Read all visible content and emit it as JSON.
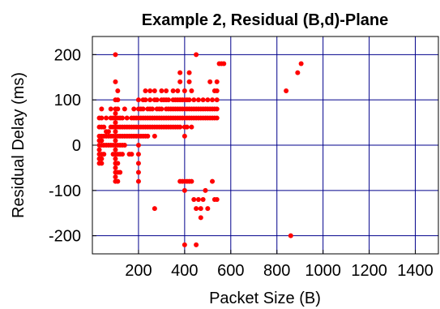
{
  "chart_data": {
    "type": "scatter",
    "title": "Example 2, Residual (B,d)-Plane",
    "xlabel": "Packet Size (B)",
    "ylabel": "Residual Delay (ms)",
    "xlim": [
      0,
      1500
    ],
    "ylim": [
      -240,
      240
    ],
    "xticks": [
      200,
      400,
      600,
      800,
      1000,
      1200,
      1400
    ],
    "xtick_labels": [
      "200",
      "400",
      "600",
      "800",
      "1000",
      "1200",
      "1400"
    ],
    "yticks": [
      -200,
      -100,
      0,
      100,
      200
    ],
    "ytick_labels": [
      "-200",
      "-100",
      "0",
      "100",
      "200"
    ],
    "grid": true,
    "grid_color": "#00008b",
    "point_color": "#ff0000",
    "points": [
      [
        30,
        -40
      ],
      [
        30,
        -30
      ],
      [
        30,
        -20
      ],
      [
        30,
        -10
      ],
      [
        30,
        0
      ],
      [
        30,
        10
      ],
      [
        30,
        20
      ],
      [
        30,
        40
      ],
      [
        30,
        60
      ],
      [
        40,
        -40
      ],
      [
        40,
        -30
      ],
      [
        40,
        -20
      ],
      [
        40,
        0
      ],
      [
        40,
        10
      ],
      [
        40,
        20
      ],
      [
        40,
        40
      ],
      [
        40,
        60
      ],
      [
        40,
        80
      ],
      [
        50,
        -20
      ],
      [
        50,
        0
      ],
      [
        50,
        20
      ],
      [
        50,
        40
      ],
      [
        60,
        0
      ],
      [
        60,
        20
      ],
      [
        60,
        30
      ],
      [
        60,
        60
      ],
      [
        70,
        0
      ],
      [
        70,
        20
      ],
      [
        70,
        30
      ],
      [
        80,
        0
      ],
      [
        80,
        20
      ],
      [
        80,
        40
      ],
      [
        80,
        60
      ],
      [
        80,
        80
      ],
      [
        90,
        -20
      ],
      [
        90,
        0
      ],
      [
        90,
        20
      ],
      [
        90,
        40
      ],
      [
        90,
        60
      ],
      [
        100,
        -80
      ],
      [
        100,
        -70
      ],
      [
        100,
        -60
      ],
      [
        100,
        -50
      ],
      [
        100,
        -40
      ],
      [
        100,
        -30
      ],
      [
        100,
        -20
      ],
      [
        100,
        -10
      ],
      [
        100,
        0
      ],
      [
        100,
        10
      ],
      [
        100,
        20
      ],
      [
        100,
        30
      ],
      [
        100,
        40
      ],
      [
        100,
        50
      ],
      [
        100,
        60
      ],
      [
        100,
        70
      ],
      [
        100,
        80
      ],
      [
        100,
        100
      ],
      [
        100,
        140
      ],
      [
        100,
        200
      ],
      [
        110,
        -80
      ],
      [
        110,
        -60
      ],
      [
        110,
        -40
      ],
      [
        110,
        -20
      ],
      [
        110,
        0
      ],
      [
        110,
        20
      ],
      [
        110,
        40
      ],
      [
        110,
        60
      ],
      [
        110,
        80
      ],
      [
        110,
        100
      ],
      [
        110,
        120
      ],
      [
        120,
        -60
      ],
      [
        120,
        -20
      ],
      [
        120,
        0
      ],
      [
        120,
        20
      ],
      [
        120,
        40
      ],
      [
        120,
        60
      ],
      [
        130,
        -20
      ],
      [
        130,
        0
      ],
      [
        130,
        20
      ],
      [
        130,
        40
      ],
      [
        130,
        60
      ],
      [
        140,
        0
      ],
      [
        140,
        20
      ],
      [
        140,
        40
      ],
      [
        140,
        80
      ],
      [
        150,
        20
      ],
      [
        150,
        40
      ],
      [
        150,
        60
      ],
      [
        160,
        -20
      ],
      [
        160,
        20
      ],
      [
        160,
        40
      ],
      [
        170,
        -20
      ],
      [
        170,
        20
      ],
      [
        170,
        40
      ],
      [
        170,
        60
      ],
      [
        180,
        20
      ],
      [
        180,
        40
      ],
      [
        180,
        60
      ],
      [
        180,
        80
      ],
      [
        190,
        20
      ],
      [
        190,
        40
      ],
      [
        190,
        60
      ],
      [
        200,
        -80
      ],
      [
        200,
        -60
      ],
      [
        200,
        -40
      ],
      [
        200,
        -20
      ],
      [
        200,
        0
      ],
      [
        200,
        20
      ],
      [
        200,
        40
      ],
      [
        200,
        60
      ],
      [
        200,
        80
      ],
      [
        200,
        100
      ],
      [
        210,
        20
      ],
      [
        210,
        40
      ],
      [
        210,
        60
      ],
      [
        210,
        80
      ],
      [
        220,
        20
      ],
      [
        220,
        40
      ],
      [
        220,
        60
      ],
      [
        220,
        80
      ],
      [
        220,
        100
      ],
      [
        230,
        20
      ],
      [
        230,
        40
      ],
      [
        230,
        60
      ],
      [
        230,
        100
      ],
      [
        230,
        120
      ],
      [
        240,
        20
      ],
      [
        240,
        40
      ],
      [
        240,
        60
      ],
      [
        240,
        80
      ],
      [
        250,
        40
      ],
      [
        250,
        60
      ],
      [
        250,
        80
      ],
      [
        250,
        100
      ],
      [
        250,
        120
      ],
      [
        260,
        40
      ],
      [
        260,
        60
      ],
      [
        260,
        80
      ],
      [
        270,
        -140
      ],
      [
        270,
        20
      ],
      [
        270,
        40
      ],
      [
        270,
        60
      ],
      [
        270,
        100
      ],
      [
        270,
        120
      ],
      [
        280,
        40
      ],
      [
        280,
        60
      ],
      [
        280,
        80
      ],
      [
        280,
        100
      ],
      [
        290,
        40
      ],
      [
        290,
        60
      ],
      [
        290,
        80
      ],
      [
        300,
        40
      ],
      [
        300,
        60
      ],
      [
        300,
        80
      ],
      [
        300,
        100
      ],
      [
        300,
        120
      ],
      [
        310,
        40
      ],
      [
        310,
        60
      ],
      [
        310,
        100
      ],
      [
        320,
        40
      ],
      [
        320,
        60
      ],
      [
        320,
        80
      ],
      [
        320,
        100
      ],
      [
        320,
        120
      ],
      [
        330,
        40
      ],
      [
        330,
        60
      ],
      [
        330,
        80
      ],
      [
        330,
        100
      ],
      [
        340,
        40
      ],
      [
        340,
        60
      ],
      [
        340,
        80
      ],
      [
        350,
        40
      ],
      [
        350,
        60
      ],
      [
        350,
        80
      ],
      [
        350,
        100
      ],
      [
        350,
        120
      ],
      [
        360,
        40
      ],
      [
        360,
        60
      ],
      [
        360,
        80
      ],
      [
        360,
        100
      ],
      [
        370,
        40
      ],
      [
        370,
        60
      ],
      [
        370,
        80
      ],
      [
        370,
        100
      ],
      [
        370,
        120
      ],
      [
        380,
        -80
      ],
      [
        380,
        40
      ],
      [
        380,
        60
      ],
      [
        380,
        80
      ],
      [
        380,
        100
      ],
      [
        380,
        140
      ],
      [
        380,
        160
      ],
      [
        390,
        -80
      ],
      [
        390,
        60
      ],
      [
        390,
        80
      ],
      [
        390,
        100
      ],
      [
        400,
        -220
      ],
      [
        400,
        -100
      ],
      [
        400,
        -80
      ],
      [
        400,
        20
      ],
      [
        400,
        40
      ],
      [
        400,
        60
      ],
      [
        400,
        80
      ],
      [
        400,
        100
      ],
      [
        400,
        120
      ],
      [
        410,
        -80
      ],
      [
        410,
        40
      ],
      [
        410,
        60
      ],
      [
        410,
        80
      ],
      [
        410,
        100
      ],
      [
        420,
        -80
      ],
      [
        420,
        60
      ],
      [
        420,
        80
      ],
      [
        420,
        100
      ],
      [
        420,
        140
      ],
      [
        420,
        160
      ],
      [
        430,
        -80
      ],
      [
        430,
        40
      ],
      [
        430,
        60
      ],
      [
        430,
        80
      ],
      [
        430,
        120
      ],
      [
        440,
        -120
      ],
      [
        440,
        60
      ],
      [
        440,
        80
      ],
      [
        440,
        100
      ],
      [
        450,
        -220
      ],
      [
        450,
        -140
      ],
      [
        450,
        60
      ],
      [
        450,
        80
      ],
      [
        450,
        200
      ],
      [
        460,
        -120
      ],
      [
        460,
        60
      ],
      [
        460,
        80
      ],
      [
        460,
        100
      ],
      [
        470,
        -160
      ],
      [
        470,
        -140
      ],
      [
        470,
        60
      ],
      [
        470,
        80
      ],
      [
        480,
        -120
      ],
      [
        480,
        60
      ],
      [
        480,
        80
      ],
      [
        480,
        100
      ],
      [
        490,
        -100
      ],
      [
        490,
        60
      ],
      [
        490,
        80
      ],
      [
        500,
        -140
      ],
      [
        500,
        60
      ],
      [
        500,
        80
      ],
      [
        500,
        100
      ],
      [
        510,
        60
      ],
      [
        510,
        80
      ],
      [
        510,
        140
      ],
      [
        520,
        -80
      ],
      [
        520,
        60
      ],
      [
        520,
        80
      ],
      [
        520,
        100
      ],
      [
        530,
        -120
      ],
      [
        530,
        60
      ],
      [
        530,
        80
      ],
      [
        530,
        120
      ],
      [
        540,
        -120
      ],
      [
        540,
        60
      ],
      [
        540,
        80
      ],
      [
        540,
        100
      ],
      [
        540,
        120
      ],
      [
        540,
        140
      ],
      [
        550,
        180
      ],
      [
        560,
        180
      ],
      [
        570,
        180
      ],
      [
        840,
        120
      ],
      [
        860,
        -200
      ],
      [
        890,
        160
      ],
      [
        905,
        180
      ]
    ]
  }
}
